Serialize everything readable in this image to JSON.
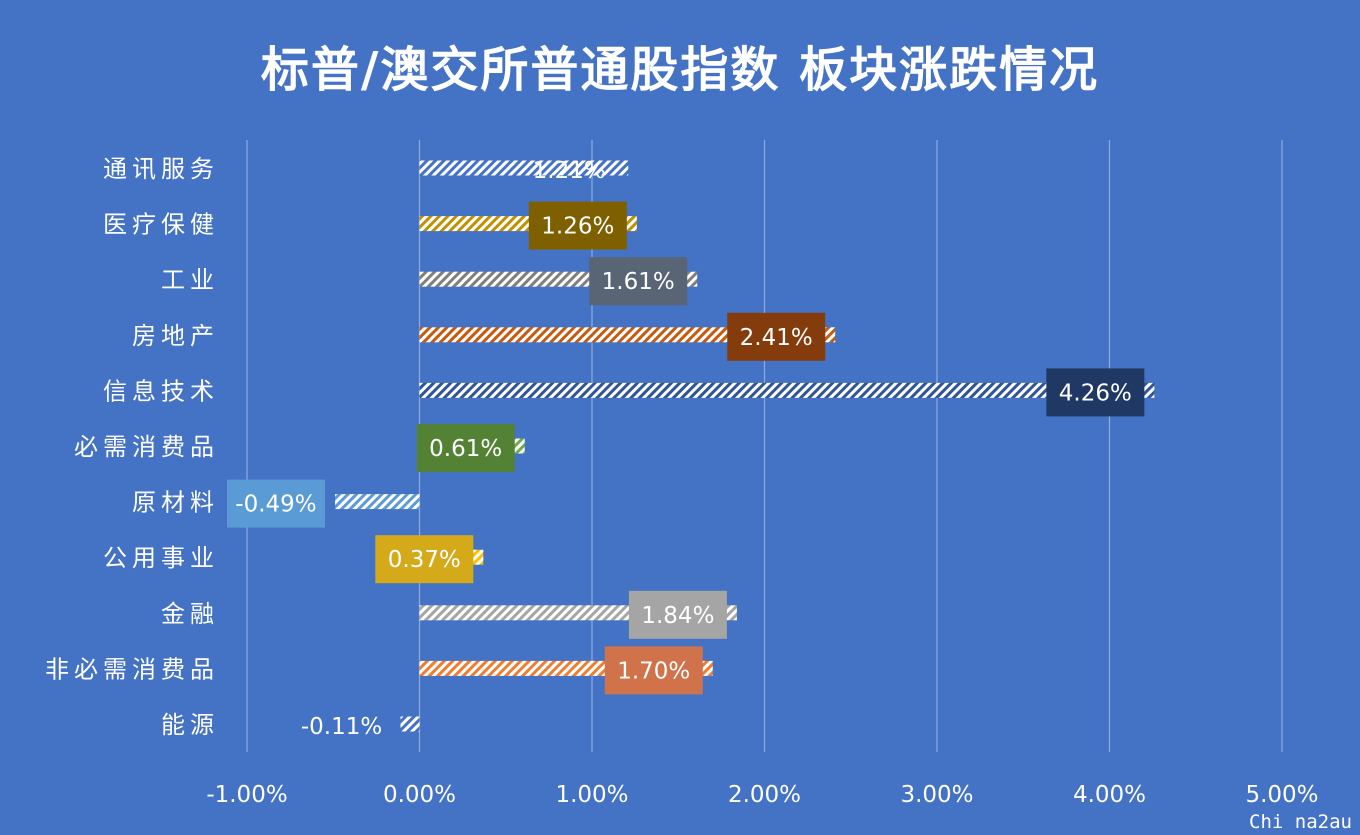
{
  "chart_data": {
    "type": "bar",
    "orientation": "horizontal",
    "title": "标普/澳交所普通股指数 板块涨跌情况",
    "xlabel": "",
    "ylabel": "",
    "xlim": [
      -1,
      5
    ],
    "x_ticks": [
      "-1.00%",
      "0.00%",
      "1.00%",
      "2.00%",
      "3.00%",
      "4.00%",
      "5.00%"
    ],
    "x_tick_values": [
      -1,
      0,
      1,
      2,
      3,
      4,
      5
    ],
    "grid": "vertical",
    "legend": "none",
    "categories": [
      "通讯服务",
      "医疗保健",
      "工业",
      "房地产",
      "信息技术",
      "必需消费品",
      "原材料",
      "公用事业",
      "金融",
      "非必需消费品",
      "能源"
    ],
    "values": [
      1.21,
      1.26,
      1.61,
      2.41,
      4.26,
      0.61,
      -0.49,
      0.37,
      1.84,
      1.7,
      -0.11
    ],
    "data_labels": [
      "1.21%",
      "1.26%",
      "1.61%",
      "2.41%",
      "4.26%",
      "0.61%",
      "-0.49%",
      "0.37%",
      "1.84%",
      "1.70%",
      "-0.11%"
    ],
    "colors": [
      "#4472c4",
      "#bf9000",
      "#7f7f7f",
      "#c55a11",
      "#2f5597",
      "#70ad47",
      "#5b9bd5",
      "#ffc000",
      "#a5a5a5",
      "#ed7d31",
      "#4472c4"
    ],
    "label_box_colors": [
      "",
      "#7f6000",
      "#596475",
      "#843c0c",
      "#203864",
      "#548235",
      "#5b9bd5",
      "#d4a91a",
      "#a5a5a5",
      "#d0734a",
      ""
    ]
  },
  "watermark": "Chi na2au"
}
